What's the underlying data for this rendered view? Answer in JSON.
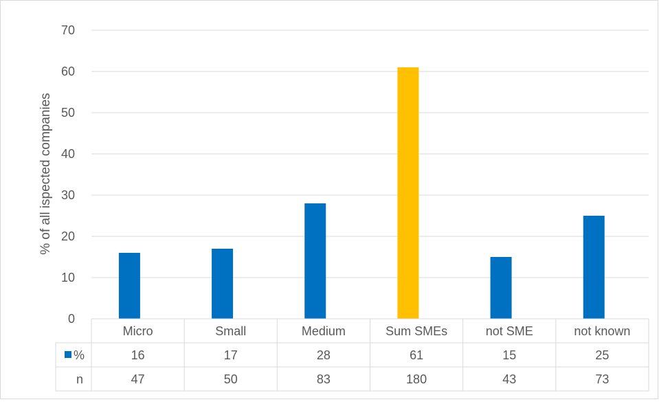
{
  "chart_data": {
    "type": "bar",
    "title": "",
    "xlabel": "",
    "ylabel": "% of all ispected companies",
    "ylim": [
      0,
      70
    ],
    "yticks": [
      0,
      10,
      20,
      30,
      40,
      50,
      60,
      70
    ],
    "grid": true,
    "categories": [
      "Micro",
      "Small",
      "Medium",
      "Sum SMEs",
      "not SME",
      "not known"
    ],
    "series": [
      {
        "name": "%",
        "values": [
          16,
          17,
          28,
          61,
          15,
          25
        ],
        "color": "#0070C0",
        "highlight_color": "#FFC000",
        "highlight_category": "Sum SMEs"
      }
    ],
    "table": {
      "rows": [
        {
          "label": "%",
          "values": [
            "16",
            "17",
            "28",
            "61",
            "15",
            "25"
          ],
          "legend_key": true
        },
        {
          "label": "n",
          "values": [
            "47",
            "50",
            "83",
            "180",
            "43",
            "73"
          ],
          "legend_key": false
        }
      ]
    },
    "legend": "data-table"
  }
}
